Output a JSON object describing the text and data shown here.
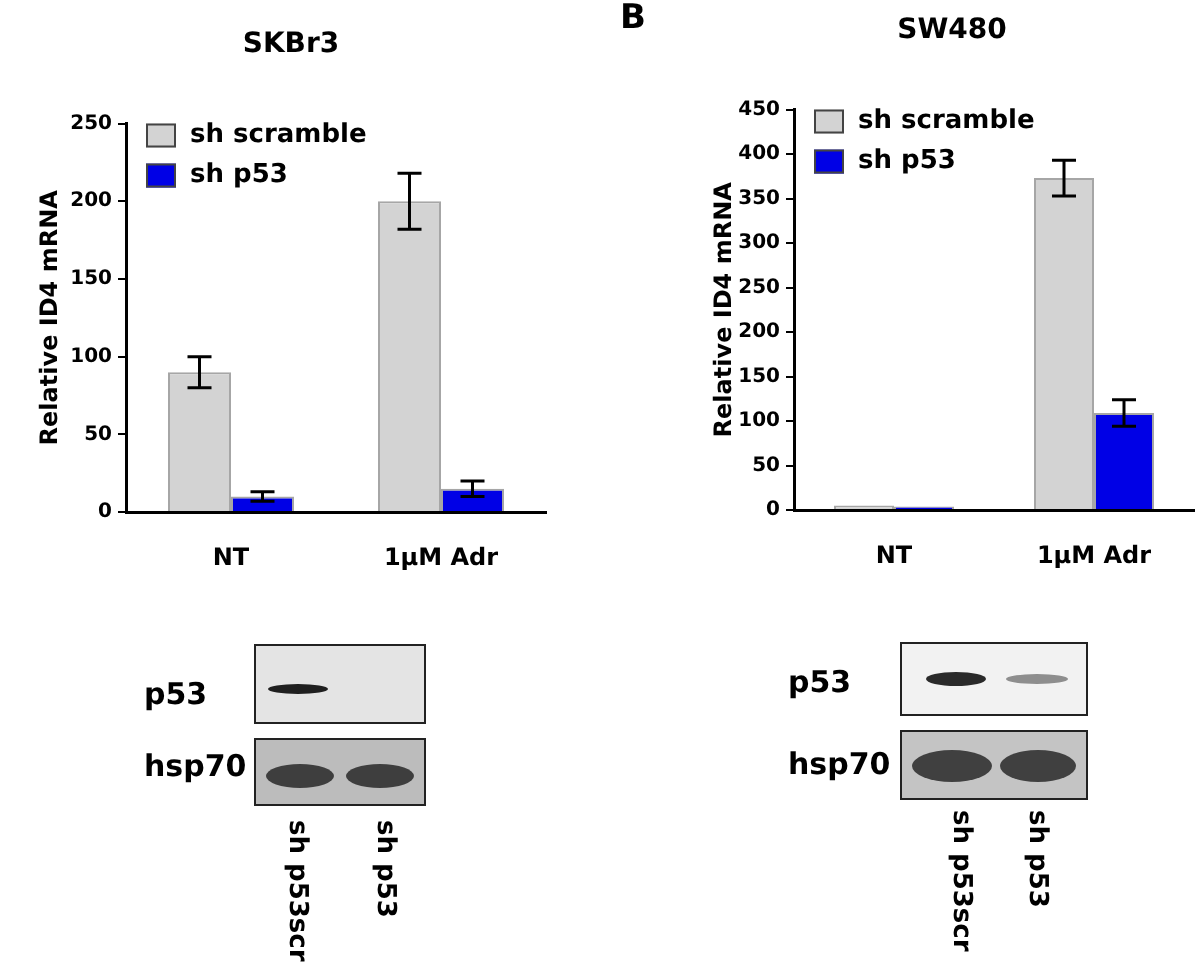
{
  "chart_data": [
    {
      "type": "bar",
      "title": "SKBr3",
      "ylabel": "Relative ID4 mRNA",
      "categories": [
        "NT",
        "1μM Adr"
      ],
      "series": [
        {
          "name": "sh scramble",
          "color": "#d3d3d3",
          "values": [
            90,
            200
          ],
          "errors": [
            10,
            18
          ]
        },
        {
          "name": "sh p53",
          "color": "#0000e6",
          "values": [
            10,
            15
          ],
          "errors": [
            3,
            5
          ]
        }
      ],
      "ylim": [
        0,
        250
      ],
      "yticks": [
        0,
        50,
        100,
        150,
        200,
        250
      ],
      "grid": false,
      "legend": "top left",
      "annotations": [
        "p53",
        "hsp70",
        "sh p53scr",
        "sh p53"
      ]
    },
    {
      "type": "bar",
      "title": "SW480",
      "ylabel": "Relative ID4 mRNA",
      "categories": [
        "NT",
        "1μM Adr"
      ],
      "series": [
        {
          "name": "sh scramble",
          "color": "#d3d3d3",
          "values": [
            5,
            373
          ],
          "errors": [
            null,
            20
          ]
        },
        {
          "name": "sh p53",
          "color": "#0000e6",
          "values": [
            4,
            109
          ],
          "errors": [
            null,
            15
          ]
        }
      ],
      "ylim": [
        0,
        450
      ],
      "yticks": [
        0,
        50,
        100,
        150,
        200,
        250,
        300,
        350,
        400,
        450
      ],
      "grid": false,
      "legend": "top left",
      "annotations": [
        "B",
        "p53",
        "hsp70",
        "sh p53scr",
        "sh p53"
      ]
    }
  ]
}
